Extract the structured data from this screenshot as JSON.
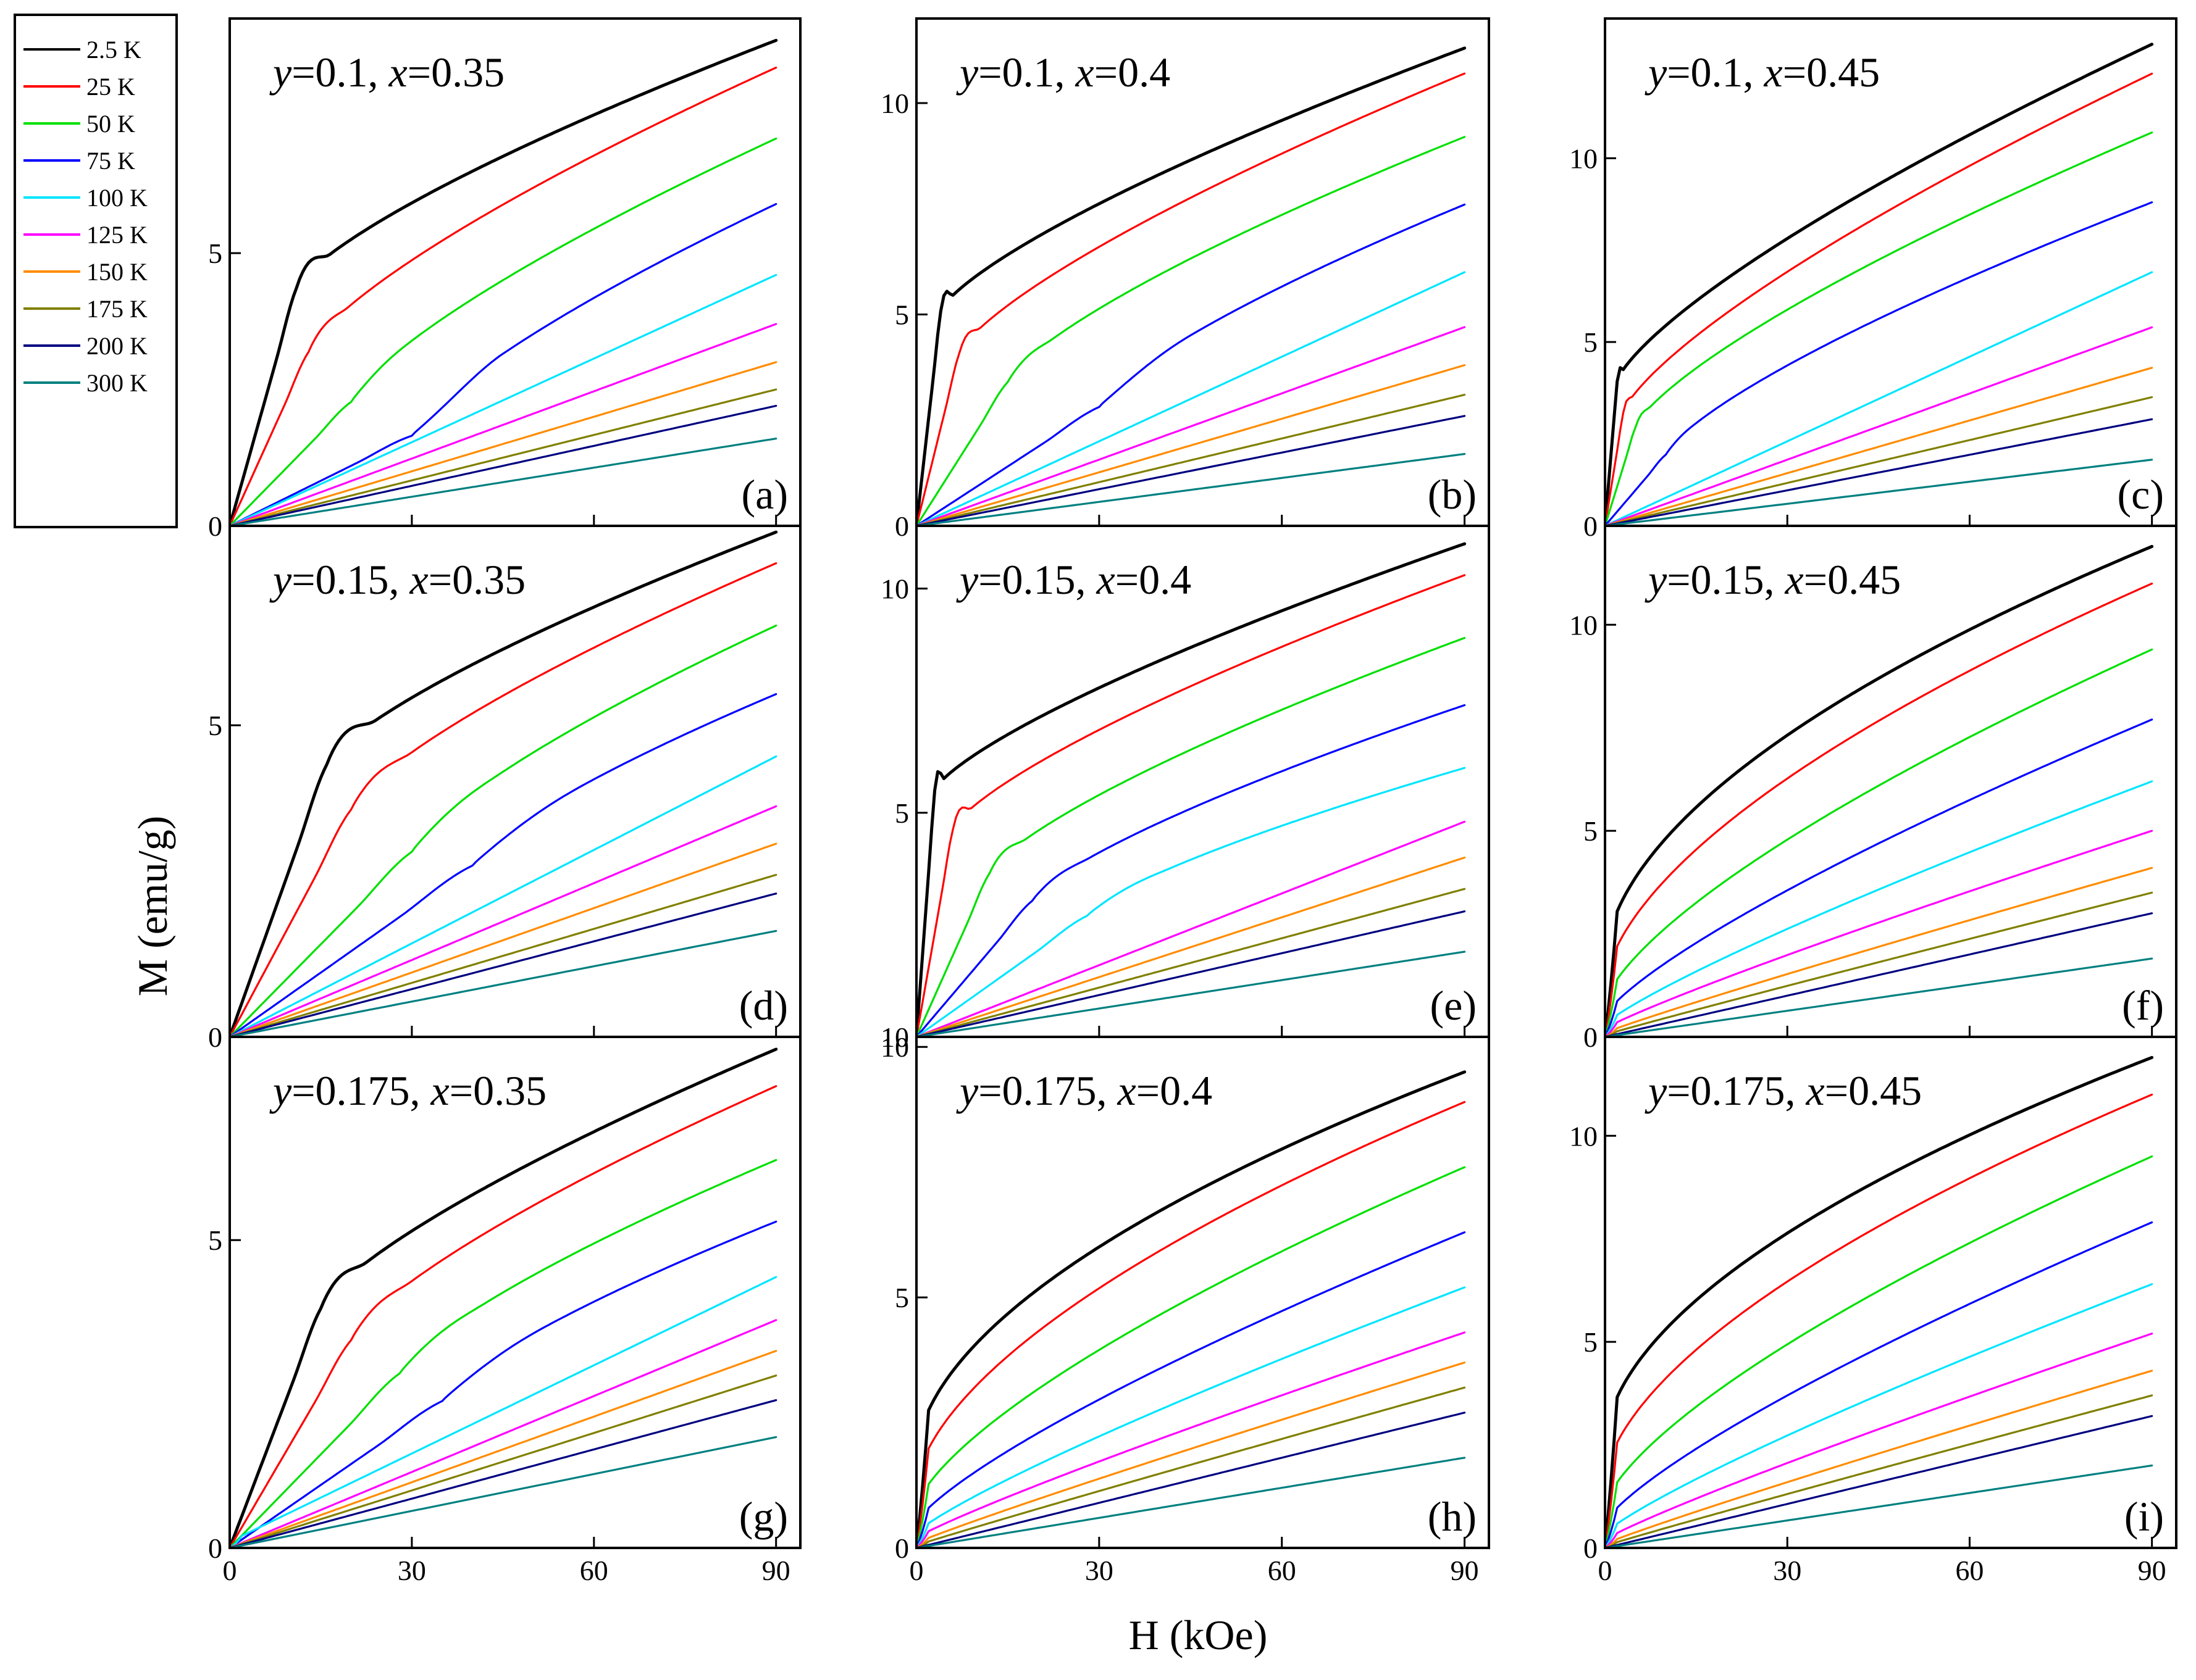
{
  "chart_data": {
    "type": "line",
    "xlabel": "H (kOe)",
    "ylabel": "M (emu/g)",
    "x_ticks": [
      0,
      30,
      60,
      90
    ],
    "x_tick_labels": [
      "0",
      "30",
      "60",
      "90"
    ],
    "xlim": [
      0,
      94
    ],
    "legend": {
      "placement": "left",
      "entries": [
        {
          "label": "2.5 K",
          "color": "#000000"
        },
        {
          "label": "25 K",
          "color": "#ff0000"
        },
        {
          "label": "50 K",
          "color": "#00e000"
        },
        {
          "label": "75 K",
          "color": "#0000ff"
        },
        {
          "label": "100 K",
          "color": "#00e5ff"
        },
        {
          "label": "125 K",
          "color": "#ff00ff"
        },
        {
          "label": "150 K",
          "color": "#ff8c00"
        },
        {
          "label": "175 K",
          "color": "#808000"
        },
        {
          "label": "200 K",
          "color": "#000080"
        },
        {
          "label": "300 K",
          "color": "#008080"
        }
      ]
    },
    "panels": [
      {
        "id": "a",
        "letter": "(a)",
        "y": "0.1",
        "x": "0.35",
        "ylim": [
          0,
          9.3
        ],
        "yticks": [
          0,
          5
        ],
        "ytick_labels": [
          "0",
          "5"
        ],
        "y90": [
          8.9,
          8.4,
          7.1,
          5.9,
          4.6,
          3.7,
          3.0,
          2.5,
          2.2,
          1.6
        ],
        "knee": [
          11,
          13,
          20,
          30,
          0,
          0,
          0,
          0,
          0,
          0
        ],
        "kneeFrac": [
          0.49,
          0.38,
          0.32,
          0.28,
          0,
          0,
          0,
          0,
          0,
          0
        ],
        "shape": [
          1.0,
          1.0,
          1.0,
          1.0,
          1.0,
          1.0,
          1.0,
          1.0,
          1.0,
          1.0
        ],
        "offset": [
          0,
          0,
          0,
          0,
          0,
          0,
          0,
          0,
          0,
          0
        ]
      },
      {
        "id": "b",
        "letter": "(b)",
        "y": "0.1",
        "x": "0.4",
        "ylim": [
          0,
          12
        ],
        "yticks": [
          0,
          5,
          10
        ],
        "ytick_labels": [
          "0",
          "5",
          "10"
        ],
        "y90": [
          11.3,
          10.7,
          9.2,
          7.6,
          6.0,
          4.7,
          3.8,
          3.1,
          2.6,
          1.7
        ],
        "knee": [
          4,
          7,
          15,
          30,
          0,
          0,
          0,
          0,
          0,
          0
        ],
        "kneeFrac": [
          0.45,
          0.38,
          0.37,
          0.37,
          0,
          0,
          0,
          0,
          0,
          0
        ],
        "shape": [
          1.0,
          1.0,
          1.0,
          1.0,
          1.0,
          1.0,
          1.0,
          1.0,
          1.0,
          1.0
        ],
        "offset": [
          0,
          0,
          0,
          0,
          0,
          0,
          0,
          0,
          0,
          0
        ]
      },
      {
        "id": "c",
        "letter": "(c)",
        "y": "0.1",
        "x": "0.45",
        "ylim": [
          0,
          13.8
        ],
        "yticks": [
          0,
          5,
          10
        ],
        "ytick_labels": [
          "0",
          "5",
          "10"
        ],
        "y90": [
          13.1,
          12.3,
          10.7,
          8.8,
          6.9,
          5.4,
          4.3,
          3.5,
          2.9,
          1.8
        ],
        "knee": [
          2,
          3,
          5,
          10,
          0,
          0,
          0,
          0,
          0,
          0
        ],
        "kneeFrac": [
          0.3,
          0.25,
          0.25,
          0.22,
          0,
          0,
          0,
          0,
          0,
          0
        ],
        "shape": [
          1.0,
          1.0,
          1.0,
          1.0,
          1.0,
          1.0,
          1.0,
          1.0,
          1.0,
          1.0
        ],
        "offset": [
          0,
          0,
          0,
          0,
          0,
          0,
          0,
          0,
          0,
          0
        ]
      },
      {
        "id": "d",
        "letter": "(d)",
        "y": "0.15",
        "x": "0.35",
        "ylim": [
          0,
          8.2
        ],
        "yticks": [
          0,
          5
        ],
        "ytick_labels": [
          "0",
          "5"
        ],
        "y90": [
          8.1,
          7.6,
          6.6,
          5.5,
          4.5,
          3.7,
          3.1,
          2.6,
          2.3,
          1.7
        ],
        "knee": [
          16,
          20,
          30,
          40,
          0,
          0,
          0,
          0,
          0,
          0
        ],
        "kneeFrac": [
          0.54,
          0.48,
          0.45,
          0.5,
          0,
          0,
          0,
          0,
          0,
          0
        ],
        "shape": [
          1.0,
          1.0,
          1.0,
          1.0,
          1.0,
          1.0,
          1.0,
          1.0,
          1.0,
          1.0
        ],
        "offset": [
          0,
          0,
          0,
          0,
          0,
          0,
          0,
          0,
          0,
          0
        ]
      },
      {
        "id": "e",
        "letter": "(e)",
        "y": "0.15",
        "x": "0.4",
        "ylim": [
          0,
          11.4
        ],
        "yticks": [
          10,
          5,
          10
        ],
        "ytick_labels": [
          "10",
          "5",
          "10"
        ],
        "y90": [
          11.0,
          10.3,
          8.9,
          7.4,
          6.0,
          4.8,
          4.0,
          3.3,
          2.8,
          1.9
        ],
        "knee": [
          3,
          6,
          12,
          19,
          28,
          0,
          0,
          0,
          0,
          0
        ],
        "kneeFrac": [
          0.5,
          0.45,
          0.41,
          0.41,
          0.45,
          0,
          0,
          0,
          0,
          0
        ],
        "shape": [
          1.0,
          1.0,
          1.0,
          1.0,
          1.0,
          1.0,
          1.0,
          1.0,
          1.0,
          1.0
        ],
        "offset": [
          0,
          0,
          0,
          0,
          0,
          0,
          0,
          0,
          0,
          0
        ]
      },
      {
        "id": "f",
        "letter": "(f)",
        "y": "0.15",
        "x": "0.45",
        "ylim": [
          0,
          12.4
        ],
        "yticks": [
          0,
          5,
          10
        ],
        "ytick_labels": [
          "0",
          "5",
          "10"
        ],
        "y90": [
          11.9,
          11.0,
          9.4,
          7.7,
          6.2,
          5.0,
          4.1,
          3.5,
          3.0,
          1.9
        ],
        "knee": [
          0,
          0,
          0,
          0,
          0,
          0,
          0,
          0,
          0,
          0
        ],
        "kneeFrac": [
          0,
          0,
          0,
          0,
          0,
          0,
          0,
          0,
          0,
          0
        ],
        "shape": [
          0.55,
          0.6,
          0.7,
          0.78,
          0.85,
          0.9,
          0.94,
          0.97,
          1.0,
          1.0
        ],
        "offset": [
          1.8,
          1.2,
          0.8,
          0.5,
          0.3,
          0.2,
          0.1,
          0.05,
          0,
          0
        ]
      },
      {
        "id": "g",
        "letter": "(g)",
        "y": "0.175",
        "x": "0.35",
        "ylim": [
          0,
          8.3
        ],
        "yticks": [
          0,
          5
        ],
        "ytick_labels": [
          "0",
          "5"
        ],
        "y90": [
          8.1,
          7.5,
          6.3,
          5.3,
          4.4,
          3.7,
          3.2,
          2.8,
          2.4,
          1.8
        ],
        "knee": [
          15,
          20,
          28,
          35,
          0,
          0,
          0,
          0,
          0,
          0
        ],
        "kneeFrac": [
          0.48,
          0.45,
          0.45,
          0.45,
          0,
          0,
          0,
          0,
          0,
          0
        ],
        "shape": [
          1.0,
          1.0,
          1.0,
          1.0,
          1.0,
          1.0,
          1.0,
          1.0,
          1.0,
          1.0
        ],
        "offset": [
          0.8,
          0.5,
          0.3,
          0.2,
          0.1,
          0,
          0,
          0,
          0,
          0
        ]
      },
      {
        "id": "h",
        "letter": "(h)",
        "y": "0.175",
        "x": "0.4",
        "ylim": [
          0,
          10.2
        ],
        "yticks": [
          0,
          5,
          10
        ],
        "ytick_labels": [
          "0",
          "5",
          "10"
        ],
        "y90": [
          9.5,
          8.9,
          7.6,
          6.3,
          5.2,
          4.3,
          3.7,
          3.2,
          2.7,
          1.8
        ],
        "knee": [
          0,
          0,
          0,
          0,
          0,
          0,
          0,
          0,
          0,
          0
        ],
        "kneeFrac": [
          0,
          0,
          0,
          0,
          0,
          0,
          0,
          0,
          0,
          0
        ],
        "shape": [
          0.55,
          0.6,
          0.7,
          0.78,
          0.85,
          0.9,
          0.94,
          0.97,
          1.0,
          1.0
        ],
        "offset": [
          1.8,
          1.2,
          0.8,
          0.5,
          0.3,
          0.2,
          0.1,
          0.05,
          0,
          0
        ]
      },
      {
        "id": "i",
        "letter": "(i)",
        "y": "0.175",
        "x": "0.45",
        "ylim": [
          0,
          12.4
        ],
        "yticks": [
          0,
          5,
          10
        ],
        "ytick_labels": [
          "0",
          "5",
          "10"
        ],
        "y90": [
          11.9,
          11.0,
          9.5,
          7.9,
          6.4,
          5.2,
          4.3,
          3.7,
          3.2,
          2.0
        ],
        "knee": [
          0,
          0,
          0,
          0,
          0,
          0,
          0,
          0,
          0,
          0
        ],
        "kneeFrac": [
          0,
          0,
          0,
          0,
          0,
          0,
          0,
          0,
          0,
          0
        ],
        "shape": [
          0.55,
          0.6,
          0.7,
          0.78,
          0.85,
          0.9,
          0.94,
          0.97,
          1.0,
          1.0
        ],
        "offset": [
          2.5,
          1.6,
          1.0,
          0.6,
          0.35,
          0.2,
          0.1,
          0.05,
          0,
          0
        ]
      }
    ]
  }
}
